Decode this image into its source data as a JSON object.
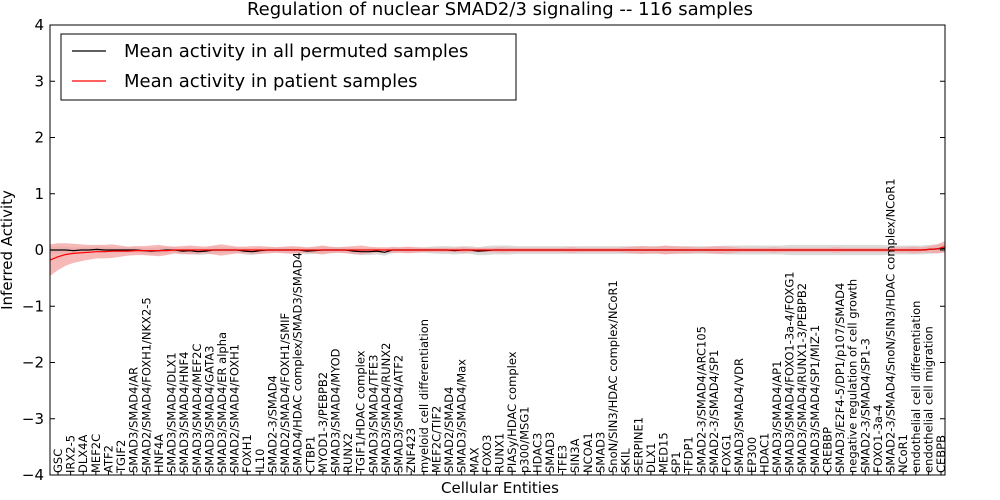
{
  "chart_data": {
    "type": "line",
    "title": "Regulation of nuclear SMAD2/3 signaling -- 116 samples",
    "xlabel": "Cellular Entities",
    "ylabel": "Inferred Activity",
    "ylim": [
      -4,
      4
    ],
    "yticks": [
      "−4",
      "−3",
      "−2",
      "−1",
      "0",
      "1",
      "2",
      "3",
      "4"
    ],
    "legend_position": "top-left",
    "n_points": 116,
    "series": [
      {
        "name": "Mean activity in all permuted samples",
        "color": "#000000",
        "band_color": "#b0b0b0",
        "values": [
          0.0,
          0.0,
          0.0,
          -0.01,
          0.0,
          0.0,
          0.01,
          0.0,
          0.0,
          0.0,
          0.0,
          0.0,
          -0.01,
          -0.02,
          -0.01,
          0.0,
          0.0,
          -0.02,
          -0.01,
          -0.03,
          -0.02,
          0.0,
          0.0,
          0.0,
          0.0,
          -0.02,
          -0.03,
          -0.01,
          0.0,
          0.0,
          0.0,
          0.0,
          0.0,
          -0.02,
          -0.01,
          0.0,
          0.0,
          0.0,
          0.0,
          -0.02,
          -0.03,
          -0.03,
          -0.02,
          -0.04,
          0.0,
          0.0,
          0.0,
          0.0,
          0.0,
          0.0,
          0.0,
          0.0,
          -0.01,
          0.0,
          0.0,
          -0.02,
          -0.01,
          0.0,
          0.0,
          0.0,
          0.0,
          0.0,
          0.0,
          0.0,
          0.0,
          0.0,
          0.0,
          0.0,
          0.0,
          0.0,
          0.0,
          0.0,
          0.0,
          0.0,
          0.0,
          0.0,
          0.0,
          0.0,
          0.0,
          0.0,
          0.0,
          0.0,
          0.0,
          0.0,
          0.0,
          0.0,
          0.0,
          0.0,
          0.0,
          0.0,
          0.0,
          0.0,
          0.0,
          0.0,
          0.0,
          0.0,
          0.0,
          0.0,
          0.0,
          0.0,
          0.0,
          0.0,
          0.0,
          0.0,
          0.0,
          0.0,
          0.0,
          0.0,
          0.0,
          0.0,
          0.0,
          0.0,
          0.0,
          0.01,
          0.02,
          0.03
        ],
        "band_halfwidth": [
          0.06,
          0.06,
          0.06,
          0.06,
          0.05,
          0.05,
          0.05,
          0.05,
          0.05,
          0.05,
          0.05,
          0.05,
          0.05,
          0.06,
          0.06,
          0.06,
          0.06,
          0.06,
          0.06,
          0.06,
          0.06,
          0.06,
          0.05,
          0.05,
          0.05,
          0.06,
          0.06,
          0.06,
          0.05,
          0.05,
          0.05,
          0.05,
          0.06,
          0.06,
          0.06,
          0.06,
          0.05,
          0.05,
          0.05,
          0.06,
          0.06,
          0.06,
          0.06,
          0.06,
          0.06,
          0.05,
          0.05,
          0.05,
          0.05,
          0.06,
          0.07,
          0.07,
          0.07,
          0.07,
          0.07,
          0.07,
          0.08,
          0.08,
          0.08,
          0.08,
          0.07,
          0.07,
          0.07,
          0.07,
          0.07,
          0.07,
          0.07,
          0.07,
          0.07,
          0.07,
          0.07,
          0.07,
          0.07,
          0.07,
          0.07,
          0.07,
          0.07,
          0.07,
          0.07,
          0.07,
          0.07,
          0.07,
          0.07,
          0.07,
          0.07,
          0.07,
          0.07,
          0.08,
          0.08,
          0.08,
          0.08,
          0.08,
          0.08,
          0.08,
          0.08,
          0.09,
          0.09,
          0.09,
          0.09,
          0.09,
          0.09,
          0.09,
          0.09,
          0.09,
          0.09,
          0.09,
          0.09,
          0.09,
          0.08,
          0.08,
          0.08,
          0.08,
          0.08,
          0.08,
          0.08,
          0.08
        ]
      },
      {
        "name": "Mean activity in patient samples",
        "color": "#ff0000",
        "band_color": "#f4a0a0",
        "values": [
          -0.18,
          -0.12,
          -0.08,
          -0.06,
          -0.05,
          -0.04,
          -0.03,
          -0.03,
          -0.02,
          -0.02,
          -0.02,
          -0.01,
          -0.01,
          -0.01,
          -0.01,
          -0.01,
          0.0,
          0.0,
          0.0,
          0.0,
          0.0,
          0.0,
          0.0,
          0.0,
          0.0,
          0.0,
          0.0,
          0.0,
          0.0,
          0.0,
          0.0,
          0.0,
          0.0,
          0.0,
          0.0,
          0.0,
          0.0,
          0.0,
          0.0,
          0.0,
          0.0,
          0.0,
          0.0,
          0.0,
          0.0,
          0.0,
          0.0,
          0.0,
          0.0,
          0.0,
          0.0,
          0.0,
          0.0,
          0.0,
          0.0,
          0.0,
          0.0,
          0.0,
          0.0,
          0.0,
          0.0,
          0.0,
          0.0,
          0.0,
          0.0,
          0.0,
          0.0,
          0.0,
          0.0,
          0.0,
          0.0,
          0.0,
          0.0,
          0.0,
          0.0,
          0.0,
          0.0,
          0.0,
          0.0,
          0.0,
          0.0,
          0.0,
          0.0,
          0.0,
          0.0,
          0.0,
          0.0,
          0.0,
          0.0,
          0.0,
          0.0,
          0.0,
          0.0,
          0.0,
          0.0,
          0.0,
          0.0,
          0.0,
          0.0,
          0.0,
          0.0,
          0.0,
          0.0,
          0.0,
          0.0,
          0.0,
          0.0,
          0.0,
          0.0,
          0.0,
          0.0,
          0.0,
          0.0,
          0.01,
          0.02,
          0.06
        ],
        "band_halfwidth": [
          0.28,
          0.24,
          0.2,
          0.17,
          0.15,
          0.13,
          0.12,
          0.12,
          0.12,
          0.1,
          0.08,
          0.08,
          0.08,
          0.09,
          0.1,
          0.08,
          0.06,
          0.07,
          0.08,
          0.07,
          0.06,
          0.08,
          0.1,
          0.08,
          0.06,
          0.06,
          0.07,
          0.07,
          0.06,
          0.05,
          0.06,
          0.07,
          0.06,
          0.05,
          0.06,
          0.08,
          0.06,
          0.05,
          0.06,
          0.07,
          0.08,
          0.06,
          0.05,
          0.05,
          0.05,
          0.05,
          0.06,
          0.05,
          0.04,
          0.04,
          0.04,
          0.04,
          0.04,
          0.05,
          0.04,
          0.04,
          0.04,
          0.04,
          0.05,
          0.04,
          0.04,
          0.04,
          0.04,
          0.04,
          0.04,
          0.04,
          0.04,
          0.05,
          0.04,
          0.04,
          0.04,
          0.04,
          0.04,
          0.04,
          0.05,
          0.06,
          0.07,
          0.06,
          0.06,
          0.08,
          0.07,
          0.06,
          0.06,
          0.05,
          0.05,
          0.06,
          0.07,
          0.06,
          0.05,
          0.04,
          0.04,
          0.04,
          0.04,
          0.05,
          0.04,
          0.04,
          0.04,
          0.04,
          0.04,
          0.04,
          0.04,
          0.05,
          0.04,
          0.04,
          0.04,
          0.04,
          0.04,
          0.04,
          0.04,
          0.05,
          0.05,
          0.06,
          0.05,
          0.06,
          0.08,
          0.1
        ]
      }
    ],
    "x_tick_labels": [
      {
        "pos": 0,
        "label": "GSC"
      },
      {
        "pos": 1,
        "label": "IRX2-5"
      },
      {
        "pos": 2,
        "label": "DLX4A"
      },
      {
        "pos": 3,
        "label": "MEF2C"
      },
      {
        "pos": 4,
        "label": "ATF2"
      },
      {
        "pos": 5,
        "label": "TGIF2"
      },
      {
        "pos": 6,
        "label": "SMAD3/SMAD4/AR"
      },
      {
        "pos": 7,
        "label": "SMAD2/SMAD4/FOXH1/NKX2-5"
      },
      {
        "pos": 8,
        "label": "HNF4A"
      },
      {
        "pos": 9,
        "label": "SMAD3/SMAD4/DLX1"
      },
      {
        "pos": 10,
        "label": "SMAD3/SMAD4/HNF4"
      },
      {
        "pos": 11,
        "label": "SMAD3/SMAD4/MEF2C"
      },
      {
        "pos": 12,
        "label": "SMAD3/SMAD4/GATA3"
      },
      {
        "pos": 13,
        "label": "SMAD3/SMAD4/ER alpha"
      },
      {
        "pos": 14,
        "label": "SMAD2/SMAD4/FOXH1"
      },
      {
        "pos": 15,
        "label": "FOXH1"
      },
      {
        "pos": 16,
        "label": "IL10"
      },
      {
        "pos": 17,
        "label": "SMAD2-3/SMAD4"
      },
      {
        "pos": 18,
        "label": "SMAD2/SMAD4/FOXH1/SMIF"
      },
      {
        "pos": 19,
        "label": "SMAD4/HDAC complex/SMAD3/SMAD4"
      },
      {
        "pos": 20,
        "label": "CTBP1"
      },
      {
        "pos": 21,
        "label": "MYOD1-3/PEBPB2"
      },
      {
        "pos": 22,
        "label": "SMAD3/SMAD4/MYOD"
      },
      {
        "pos": 23,
        "label": "RUNX2"
      },
      {
        "pos": 24,
        "label": "TGIF1/HDAC complex"
      },
      {
        "pos": 25,
        "label": "SMAD3/SMAD4/TFE3"
      },
      {
        "pos": 26,
        "label": "SMAD3/SMAD4/RUNX2"
      },
      {
        "pos": 27,
        "label": "SMAD3/SMAD4/ATF2"
      },
      {
        "pos": 28,
        "label": "ZNF423"
      },
      {
        "pos": 29,
        "label": "myeloid cell differentiation"
      },
      {
        "pos": 30,
        "label": "MEF2C/TIF2"
      },
      {
        "pos": 31,
        "label": "SMAD2/SMAD4"
      },
      {
        "pos": 32,
        "label": "SMAD3/SMAD4/Max"
      },
      {
        "pos": 33,
        "label": "MAX"
      },
      {
        "pos": 34,
        "label": "FOXO3"
      },
      {
        "pos": 35,
        "label": "RUNX1"
      },
      {
        "pos": 36,
        "label": "PIASy/HDAC complex"
      },
      {
        "pos": 37,
        "label": "p300/MSG1"
      },
      {
        "pos": 38,
        "label": "HDAC3"
      },
      {
        "pos": 39,
        "label": "SMAD3"
      },
      {
        "pos": 40,
        "label": "TFE3"
      },
      {
        "pos": 41,
        "label": "SIN3A"
      },
      {
        "pos": 42,
        "label": "NCOA1"
      },
      {
        "pos": 43,
        "label": "SMAD3"
      },
      {
        "pos": 44,
        "label": "SnoN/SIN3/HDAC complex/NCoR1"
      },
      {
        "pos": 45,
        "label": "SKIL"
      },
      {
        "pos": 46,
        "label": "SERPINE1"
      },
      {
        "pos": 47,
        "label": "DLX1"
      },
      {
        "pos": 48,
        "label": "MED15"
      },
      {
        "pos": 49,
        "label": "SP1"
      },
      {
        "pos": 50,
        "label": "TFDP1"
      },
      {
        "pos": 51,
        "label": "SMAD2-3/SMAD4/ARC105"
      },
      {
        "pos": 52,
        "label": "SMAD2-3/SMAD4/SP1"
      },
      {
        "pos": 53,
        "label": "FOXG1"
      },
      {
        "pos": 54,
        "label": "SMAD3/SMAD4/VDR"
      },
      {
        "pos": 55,
        "label": "EP300"
      },
      {
        "pos": 56,
        "label": "HDAC1"
      },
      {
        "pos": 57,
        "label": "SMAD3/SMAD4/AP1"
      },
      {
        "pos": 58,
        "label": "SMAD3/SMAD4/FOXO1-3a-4/FOXG1"
      },
      {
        "pos": 59,
        "label": "SMAD3/SMAD4/RUNX1-3/PEBPB2"
      },
      {
        "pos": 60,
        "label": "SMAD3/SMAD4/SP1/MIZ-1"
      },
      {
        "pos": 61,
        "label": "CREBBP"
      },
      {
        "pos": 62,
        "label": "SMAD3/E2F4-5/DP1/p107/SMAD4"
      },
      {
        "pos": 63,
        "label": "negative regulation of cell growth"
      },
      {
        "pos": 64,
        "label": "SMAD2-3/SMAD4/SP1-3"
      },
      {
        "pos": 65,
        "label": "FOXO1-3a-4"
      },
      {
        "pos": 66,
        "label": "SMAD2-3/SMAD4/SnoN/SIN3/HDAC complex/NCoR1"
      },
      {
        "pos": 67,
        "label": "NCoR1"
      },
      {
        "pos": 68,
        "label": "endothelial cell differentiation"
      },
      {
        "pos": 69,
        "label": "endothelial cell migration"
      },
      {
        "pos": 70,
        "label": "CEBPB"
      }
    ]
  }
}
